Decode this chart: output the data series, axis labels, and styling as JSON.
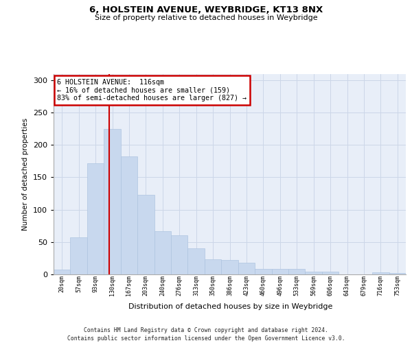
{
  "title1": "6, HOLSTEIN AVENUE, WEYBRIDGE, KT13 8NX",
  "title2": "Size of property relative to detached houses in Weybridge",
  "xlabel": "Distribution of detached houses by size in Weybridge",
  "ylabel": "Number of detached properties",
  "bar_labels": [
    "20sqm",
    "57sqm",
    "93sqm",
    "130sqm",
    "167sqm",
    "203sqm",
    "240sqm",
    "276sqm",
    "313sqm",
    "350sqm",
    "386sqm",
    "423sqm",
    "460sqm",
    "496sqm",
    "533sqm",
    "569sqm",
    "606sqm",
    "643sqm",
    "679sqm",
    "716sqm",
    "753sqm"
  ],
  "bar_values": [
    7,
    57,
    172,
    225,
    182,
    123,
    67,
    60,
    40,
    23,
    22,
    18,
    9,
    8,
    8,
    4,
    4,
    0,
    0,
    3,
    2
  ],
  "bar_color": "#c8d8ee",
  "bar_edge_color": "#aec4e0",
  "grid_color": "#ccd6e8",
  "background_color": "#e8eef8",
  "vline_x": 2.82,
  "vline_color": "#cc0000",
  "annotation_text": "6 HOLSTEIN AVENUE:  116sqm\n← 16% of detached houses are smaller (159)\n83% of semi-detached houses are larger (827) →",
  "annotation_box_color": "white",
  "annotation_box_edge": "#cc0000",
  "footer_line1": "Contains HM Land Registry data © Crown copyright and database right 2024.",
  "footer_line2": "Contains public sector information licensed under the Open Government Licence v3.0.",
  "ylim": [
    0,
    310
  ],
  "yticks": [
    0,
    50,
    100,
    150,
    200,
    250,
    300
  ]
}
